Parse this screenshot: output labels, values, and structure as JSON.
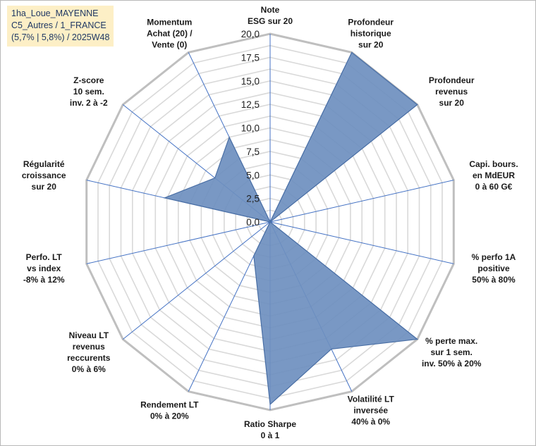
{
  "info_box": {
    "line1": "1ha_Loue_MAYENNE",
    "line2": "C5_Autres / 1_FRANCE",
    "line3": "(5,7% | 5,8%) / 2025W48"
  },
  "colors": {
    "area_fill": "#6e8fbf",
    "area_stroke": "#4a6fa5",
    "ring": "#d9d9d9",
    "outer_ring": "#bfbfbf",
    "spoke": "#4472c4",
    "info_bg": "#fdefc6"
  },
  "chart_data": {
    "type": "radar",
    "title": "",
    "rmin": 0,
    "rmax": 20,
    "ticks": [
      "0,0",
      "2,5",
      "5,0",
      "7,5",
      "10,0",
      "12,5",
      "15,0",
      "17,5",
      "20,0"
    ],
    "grid": true,
    "axes": [
      {
        "label": [
          "Note",
          "ESG sur 20"
        ],
        "value": 0
      },
      {
        "label": [
          "Profondeur",
          "historique",
          "sur 20"
        ],
        "value": 20
      },
      {
        "label": [
          "Profondeur",
          "revenus",
          "sur 20"
        ],
        "value": 20
      },
      {
        "label": [
          "Capi. bours.",
          "en MdEUR",
          "0 à 60 G€"
        ],
        "value": 0
      },
      {
        "label": [
          "% perfo 1A",
          "positive",
          "50% à 80%"
        ],
        "value": 0
      },
      {
        "label": [
          "% perte max.",
          "sur 1 sem.",
          "inv. 50% à 20%"
        ],
        "value": 20
      },
      {
        "label": [
          "Volatilité LT",
          "inversée",
          "40% à 0%"
        ],
        "value": 15
      },
      {
        "label": [
          "Ratio Sharpe",
          "0 à 1"
        ],
        "value": 19.4
      },
      {
        "label": [
          "Rendement LT",
          "0% à 20%"
        ],
        "value": 4
      },
      {
        "label": [
          "Niveau LT",
          "revenus",
          "reccurents",
          "0% à 6%"
        ],
        "value": 0
      },
      {
        "label": [
          "Perfo. LT",
          "vs index",
          "-8% à 12%"
        ],
        "value": 0
      },
      {
        "label": [
          "Régularité",
          "croissance",
          "sur 20"
        ],
        "value": 11.5
      },
      {
        "label": [
          "Z-score",
          "10 sem.",
          "inv. 2 à -2"
        ],
        "value": 7.5
      },
      {
        "label": [
          "Momentum",
          "Achat (20) /",
          "Vente (0)"
        ],
        "value": 10
      }
    ]
  }
}
